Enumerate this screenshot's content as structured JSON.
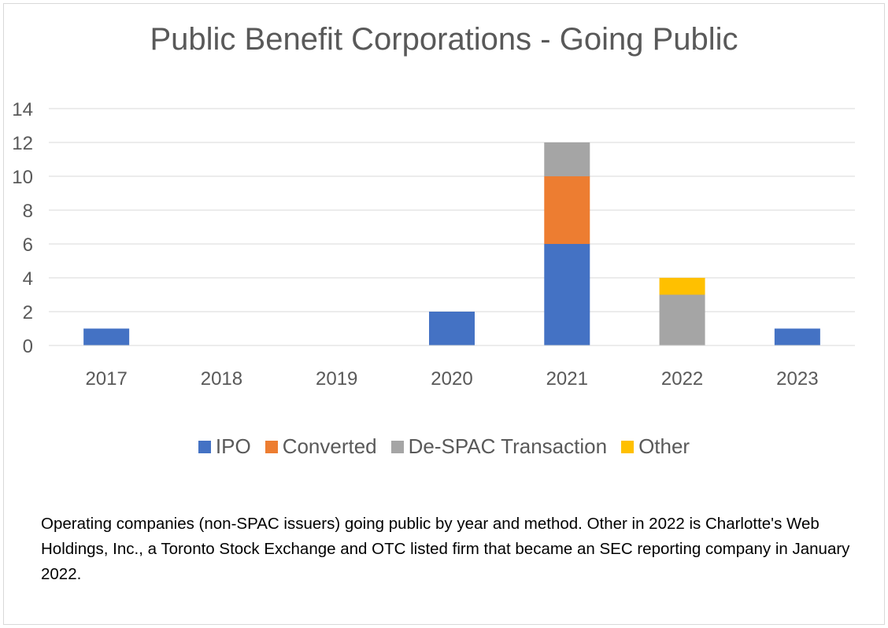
{
  "chart_data": {
    "type": "bar",
    "stacked": true,
    "title": "Public Benefit Corporations  - Going Public",
    "categories": [
      "2017",
      "2018",
      "2019",
      "2020",
      "2021",
      "2022",
      "2023"
    ],
    "series": [
      {
        "name": "IPO",
        "color": "#4472c4",
        "values": [
          1,
          0,
          0,
          2,
          6,
          0,
          1
        ]
      },
      {
        "name": "Converted",
        "color": "#ed7d31",
        "values": [
          0,
          0,
          0,
          0,
          4,
          0,
          0
        ]
      },
      {
        "name": "De-SPAC Transaction",
        "color": "#a5a5a5",
        "values": [
          0,
          0,
          0,
          0,
          2,
          3,
          0
        ]
      },
      {
        "name": "Other",
        "color": "#ffc000",
        "values": [
          0,
          0,
          0,
          0,
          0,
          1,
          0
        ]
      }
    ],
    "ylim": [
      0,
      14
    ],
    "yticks": [
      0,
      2,
      4,
      6,
      8,
      10,
      12,
      14
    ],
    "grid": true,
    "legend_position": "bottom"
  },
  "caption": "Operating companies (non-SPAC issuers) going public by year and method. Other in 2022 is Charlotte's Web Holdings, Inc., a Toronto Stock Exchange and OTC listed firm that became an SEC reporting company in January 2022."
}
